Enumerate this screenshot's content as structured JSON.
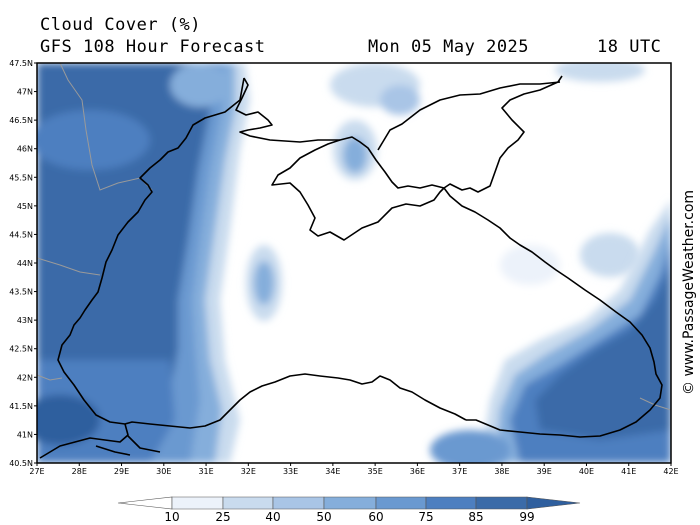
{
  "header": {
    "title_line1": "Cloud Cover (%)",
    "title_line2": "GFS 108 Hour Forecast",
    "date": "Mon 05 May 2025",
    "time": "18 UTC"
  },
  "credit": "© www.PassageWeather.com",
  "map": {
    "lon_range": [
      27,
      42
    ],
    "lat_range": [
      40.5,
      47.5
    ],
    "lon_ticks": [
      "27E",
      "28E",
      "29E",
      "30E",
      "31E",
      "32E",
      "33E",
      "34E",
      "35E",
      "36E",
      "37E",
      "38E",
      "39E",
      "40E",
      "41E",
      "42E"
    ],
    "lat_ticks": [
      "47.5N",
      "47N",
      "46.5N",
      "46N",
      "45.5N",
      "45N",
      "44.5N",
      "44N",
      "43.5N",
      "43N",
      "42.5N",
      "42N",
      "41.5N",
      "41N",
      "40.5N"
    ]
  },
  "colorbar": {
    "labels": [
      "10",
      "25",
      "40",
      "50",
      "60",
      "75",
      "85",
      "99"
    ],
    "colors": [
      "#ffffff",
      "#ecf2fa",
      "#c9dbee",
      "#a9c5e6",
      "#85aedb",
      "#6a99d0",
      "#4d7fc0",
      "#3b6ba8",
      "#2f5f9e"
    ]
  }
}
